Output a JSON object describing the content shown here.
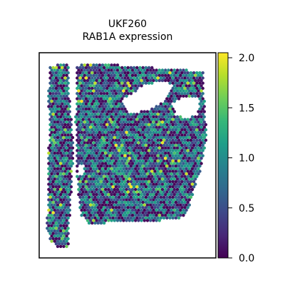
{
  "chart_data": {
    "type": "scatter",
    "subtype": "spatial-transcriptomics-hex",
    "title": "UKF260",
    "subtitle": "RAB1A expression",
    "xlabel": "",
    "ylabel": "",
    "axes_ticks_visible": false,
    "grid": false,
    "colorbar": {
      "colormap": "viridis",
      "range": [
        0.0,
        2.05
      ],
      "ticks": [
        0.0,
        0.5,
        1.0,
        1.5,
        2.0
      ],
      "tick_labels": [
        "0.0",
        "0.5",
        "1.0",
        "1.5",
        "2.0"
      ]
    },
    "colormap_stops": [
      "#440154",
      "#482878",
      "#3e4989",
      "#31688e",
      "#26828e",
      "#1f9e89",
      "#35b779",
      "#6ece58",
      "#b5de2b",
      "#fde725"
    ],
    "value_distribution": "mostly 0.3-1.3, some 0 spots, sparse values up to ~2.0"
  }
}
